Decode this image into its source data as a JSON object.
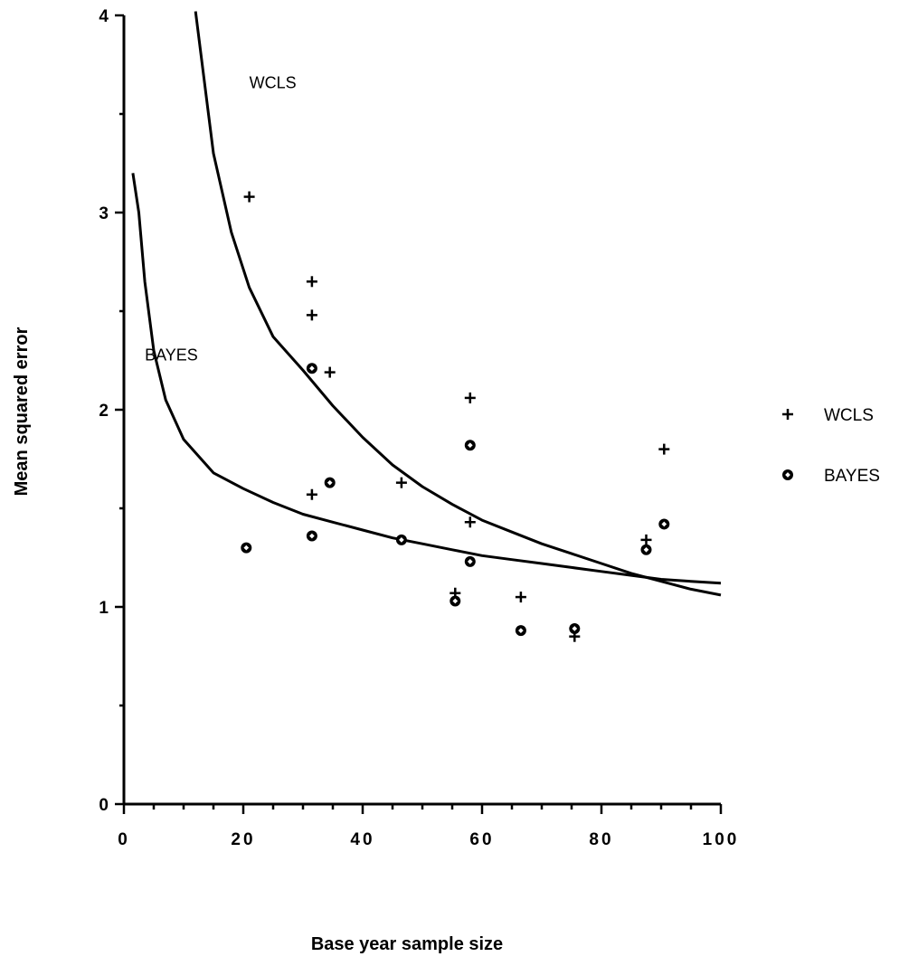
{
  "chart_data": {
    "type": "scatter",
    "title": "",
    "xlabel": "Base year sample size",
    "ylabel": "Mean squared error",
    "xlim": [
      0,
      100
    ],
    "ylim": [
      0,
      4
    ],
    "x_ticks": [
      0,
      20,
      40,
      60,
      80,
      100
    ],
    "x_tick_labels": [
      "0",
      "20",
      "40",
      "60",
      "80",
      "100"
    ],
    "y_ticks": [
      0,
      1,
      2,
      3,
      4
    ],
    "y_tick_labels": [
      "0",
      "1",
      "2",
      "3",
      "4"
    ],
    "grid": false,
    "legend_position": "right",
    "series": [
      {
        "name": "WCLS",
        "marker": "plus",
        "points": [
          {
            "x": 21,
            "y": 3.08
          },
          {
            "x": 31.5,
            "y": 2.65
          },
          {
            "x": 31.5,
            "y": 2.48
          },
          {
            "x": 34.5,
            "y": 2.19
          },
          {
            "x": 31.5,
            "y": 1.57
          },
          {
            "x": 46.5,
            "y": 1.63
          },
          {
            "x": 58,
            "y": 2.06
          },
          {
            "x": 58,
            "y": 1.43
          },
          {
            "x": 55.5,
            "y": 1.07
          },
          {
            "x": 66.5,
            "y": 1.05
          },
          {
            "x": 75.5,
            "y": 0.85
          },
          {
            "x": 87.5,
            "y": 1.34
          },
          {
            "x": 90.5,
            "y": 1.8
          }
        ],
        "curve": [
          {
            "x": 12,
            "y": 4.02
          },
          {
            "x": 15,
            "y": 3.3
          },
          {
            "x": 18,
            "y": 2.9
          },
          {
            "x": 21,
            "y": 2.62
          },
          {
            "x": 25,
            "y": 2.37
          },
          {
            "x": 30,
            "y": 2.2
          },
          {
            "x": 35,
            "y": 2.02
          },
          {
            "x": 40,
            "y": 1.86
          },
          {
            "x": 45,
            "y": 1.72
          },
          {
            "x": 50,
            "y": 1.61
          },
          {
            "x": 55,
            "y": 1.52
          },
          {
            "x": 60,
            "y": 1.44
          },
          {
            "x": 65,
            "y": 1.38
          },
          {
            "x": 70,
            "y": 1.32
          },
          {
            "x": 75,
            "y": 1.27
          },
          {
            "x": 80,
            "y": 1.22
          },
          {
            "x": 85,
            "y": 1.17
          },
          {
            "x": 90,
            "y": 1.13
          },
          {
            "x": 95,
            "y": 1.09
          },
          {
            "x": 100,
            "y": 1.06
          }
        ]
      },
      {
        "name": "BAYES",
        "marker": "diamond",
        "points": [
          {
            "x": 20.5,
            "y": 1.3
          },
          {
            "x": 31.5,
            "y": 2.21
          },
          {
            "x": 31.5,
            "y": 1.36
          },
          {
            "x": 34.5,
            "y": 1.63
          },
          {
            "x": 46.5,
            "y": 1.34
          },
          {
            "x": 58,
            "y": 1.82
          },
          {
            "x": 58,
            "y": 1.23
          },
          {
            "x": 55.5,
            "y": 1.03
          },
          {
            "x": 66.5,
            "y": 0.88
          },
          {
            "x": 75.5,
            "y": 0.89
          },
          {
            "x": 87.5,
            "y": 1.29
          },
          {
            "x": 90.5,
            "y": 1.42
          }
        ],
        "curve": [
          {
            "x": 1.5,
            "y": 3.2
          },
          {
            "x": 2.5,
            "y": 3.0
          },
          {
            "x": 3.5,
            "y": 2.65
          },
          {
            "x": 5,
            "y": 2.3
          },
          {
            "x": 7,
            "y": 2.05
          },
          {
            "x": 10,
            "y": 1.85
          },
          {
            "x": 15,
            "y": 1.68
          },
          {
            "x": 20,
            "y": 1.6
          },
          {
            "x": 25,
            "y": 1.53
          },
          {
            "x": 30,
            "y": 1.47
          },
          {
            "x": 35,
            "y": 1.43
          },
          {
            "x": 40,
            "y": 1.39
          },
          {
            "x": 45,
            "y": 1.35
          },
          {
            "x": 50,
            "y": 1.32
          },
          {
            "x": 55,
            "y": 1.29
          },
          {
            "x": 60,
            "y": 1.26
          },
          {
            "x": 65,
            "y": 1.24
          },
          {
            "x": 70,
            "y": 1.22
          },
          {
            "x": 75,
            "y": 1.2
          },
          {
            "x": 80,
            "y": 1.18
          },
          {
            "x": 85,
            "y": 1.16
          },
          {
            "x": 90,
            "y": 1.14
          },
          {
            "x": 95,
            "y": 1.13
          },
          {
            "x": 100,
            "y": 1.12
          }
        ]
      }
    ],
    "annotations": [
      {
        "text": "WCLS",
        "x": 21,
        "y": 3.63
      },
      {
        "text": "BAYES",
        "x": 3.5,
        "y": 2.25
      }
    ]
  }
}
